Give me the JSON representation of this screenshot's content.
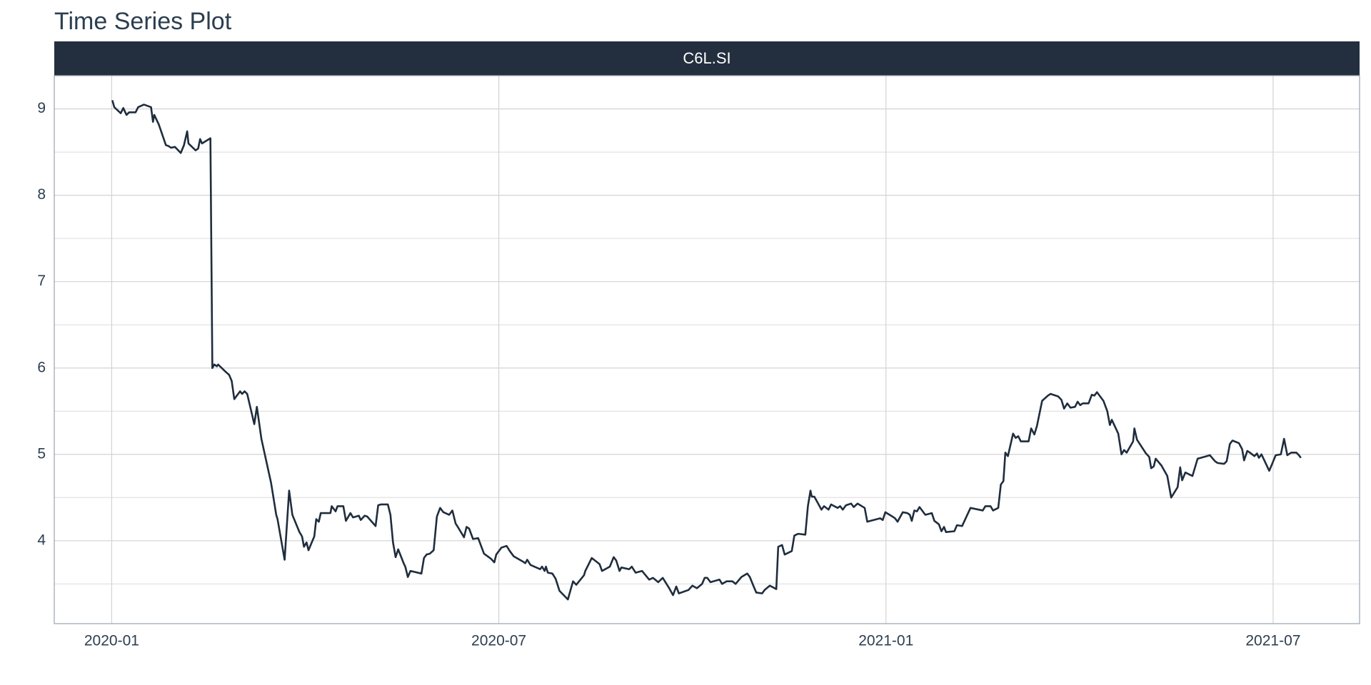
{
  "chart_data": {
    "type": "line",
    "title": "Time Series Plot",
    "panel_title": "C6L.SI",
    "color": "#1f2d3d",
    "x": [
      0.01,
      0.04,
      0.14,
      0.18,
      0.23,
      0.27,
      0.37,
      0.41,
      0.5,
      0.61,
      0.64,
      0.66,
      0.73,
      0.84,
      0.88,
      0.92,
      0.98,
      1.07,
      1.12,
      1.17,
      1.19,
      1.3,
      1.34,
      1.37,
      1.4,
      1.53,
      1.56,
      1.59,
      1.63,
      1.65,
      1.76,
      1.82,
      1.86,
      1.9,
      1.99,
      2.02,
      2.06,
      2.1,
      2.21,
      2.25,
      2.32,
      2.47,
      2.55,
      2.57,
      2.68,
      2.75,
      2.8,
      2.91,
      2.95,
      2.98,
      3.02,
      3.05,
      3.14,
      3.17,
      3.21,
      3.24,
      3.35,
      3.39,
      3.41,
      3.47,
      3.5,
      3.59,
      3.63,
      3.7,
      3.74,
      3.83,
      3.86,
      3.92,
      3.96,
      4.09,
      4.13,
      4.17,
      4.28,
      4.32,
      4.36,
      4.4,
      4.44,
      4.53,
      4.55,
      4.59,
      4.63,
      4.8,
      4.84,
      4.88,
      4.93,
      4.99,
      5.04,
      5.09,
      5.14,
      5.23,
      5.28,
      5.33,
      5.38,
      5.46,
      5.5,
      5.54,
      5.6,
      5.68,
      5.77,
      5.88,
      5.93,
      5.96,
      6.04,
      6.12,
      6.17,
      6.23,
      6.37,
      6.41,
      6.44,
      6.49,
      6.64,
      6.67,
      6.71,
      6.73,
      6.76,
      6.83,
      6.88,
      6.94,
      7.07,
      7.15,
      7.2,
      7.32,
      7.34,
      7.44,
      7.56,
      7.6,
      7.72,
      7.78,
      7.82,
      7.87,
      7.9,
      8.02,
      8.06,
      8.12,
      8.22,
      8.33,
      8.39,
      8.47,
      8.54,
      8.64,
      8.7,
      8.75,
      8.79,
      8.94,
      9.0,
      9.07,
      9.15,
      9.19,
      9.23,
      9.28,
      9.42,
      9.46,
      9.53,
      9.62,
      9.67,
      9.76,
      9.85,
      9.89,
      9.95,
      9.99,
      10.08,
      10.12,
      10.2,
      10.3,
      10.33,
      10.39,
      10.43,
      10.54,
      10.58,
      10.64,
      10.75,
      10.79,
      10.83,
      10.85,
      10.89,
      11.0,
      11.04,
      11.11,
      11.15,
      11.25,
      11.29,
      11.33,
      11.38,
      11.46,
      11.5,
      11.56,
      11.67,
      11.71,
      11.91,
      11.95,
      11.99,
      12.1,
      12.14,
      12.18,
      12.26,
      12.33,
      12.37,
      12.4,
      12.44,
      12.48,
      12.52,
      12.61,
      12.71,
      12.75,
      12.82,
      12.86,
      12.9,
      12.93,
      13.06,
      13.1,
      13.18,
      13.31,
      13.5,
      13.54,
      13.62,
      13.66,
      13.74,
      13.78,
      13.82,
      13.85,
      13.89,
      13.97,
      14.01,
      14.05,
      14.09,
      14.21,
      14.25,
      14.3,
      14.34,
      14.42,
      14.51,
      14.55,
      14.67,
      14.72,
      14.76,
      14.81,
      14.86,
      14.93,
      14.97,
      15.01,
      15.05,
      15.14,
      15.19,
      15.23,
      15.27,
      15.37,
      15.43,
      15.47,
      15.5,
      15.6,
      15.65,
      15.69,
      15.73,
      15.83,
      15.85,
      15.89,
      16.03,
      16.08,
      16.11,
      16.15,
      16.18,
      16.27,
      16.36,
      16.42,
      16.52,
      16.56,
      16.59,
      16.64,
      16.75,
      16.83,
      16.88,
      17.02,
      17.1,
      17.14,
      17.24,
      17.28,
      17.33,
      17.37,
      17.47,
      17.52,
      17.55,
      17.6,
      17.64,
      17.71,
      17.75,
      17.78,
      17.82,
      17.94,
      17.98,
      18.04,
      18.12,
      18.17,
      18.22,
      18.28,
      18.36,
      18.4,
      18.43
    ],
    "values": [
      9.1,
      9.02,
      8.95,
      9.01,
      8.93,
      8.96,
      8.96,
      9.02,
      9.05,
      9.02,
      8.85,
      8.93,
      8.82,
      8.58,
      8.57,
      8.55,
      8.56,
      8.49,
      8.58,
      8.74,
      8.6,
      8.52,
      8.54,
      8.65,
      8.6,
      8.66,
      6.0,
      6.04,
      6.02,
      6.04,
      5.96,
      5.92,
      5.85,
      5.64,
      5.73,
      5.7,
      5.73,
      5.7,
      5.35,
      5.55,
      5.18,
      4.67,
      4.3,
      4.25,
      3.78,
      4.58,
      4.3,
      4.1,
      4.05,
      3.93,
      3.98,
      3.89,
      4.05,
      4.25,
      4.22,
      4.32,
      4.32,
      4.32,
      4.4,
      4.34,
      4.4,
      4.4,
      4.23,
      4.32,
      4.27,
      4.29,
      4.24,
      4.29,
      4.28,
      4.17,
      4.41,
      4.42,
      4.42,
      4.3,
      3.98,
      3.81,
      3.9,
      3.73,
      3.7,
      3.58,
      3.65,
      3.62,
      3.8,
      3.84,
      3.85,
      3.89,
      4.28,
      4.38,
      4.33,
      4.3,
      4.35,
      4.2,
      4.14,
      4.04,
      4.16,
      4.14,
      4.02,
      4.03,
      3.85,
      3.79,
      3.75,
      3.84,
      3.92,
      3.94,
      3.88,
      3.82,
      3.76,
      3.74,
      3.78,
      3.72,
      3.67,
      3.7,
      3.65,
      3.7,
      3.63,
      3.62,
      3.56,
      3.42,
      3.32,
      3.53,
      3.49,
      3.6,
      3.65,
      3.8,
      3.73,
      3.65,
      3.7,
      3.81,
      3.77,
      3.65,
      3.69,
      3.67,
      3.7,
      3.63,
      3.65,
      3.55,
      3.57,
      3.52,
      3.57,
      3.45,
      3.37,
      3.47,
      3.39,
      3.43,
      3.48,
      3.45,
      3.5,
      3.57,
      3.57,
      3.52,
      3.55,
      3.5,
      3.53,
      3.53,
      3.5,
      3.58,
      3.62,
      3.58,
      3.47,
      3.4,
      3.39,
      3.43,
      3.48,
      3.44,
      3.93,
      3.95,
      3.84,
      3.88,
      4.06,
      4.08,
      4.07,
      4.4,
      4.58,
      4.51,
      4.51,
      4.36,
      4.4,
      4.36,
      4.42,
      4.38,
      4.4,
      4.36,
      4.41,
      4.43,
      4.39,
      4.43,
      4.38,
      4.22,
      4.26,
      4.24,
      4.33,
      4.28,
      4.26,
      4.22,
      4.33,
      4.32,
      4.3,
      4.23,
      4.35,
      4.34,
      4.39,
      4.3,
      4.32,
      4.23,
      4.19,
      4.11,
      4.16,
      4.1,
      4.11,
      4.18,
      4.17,
      4.38,
      4.35,
      4.4,
      4.4,
      4.35,
      4.38,
      4.65,
      4.69,
      5.02,
      4.98,
      5.24,
      5.19,
      5.21,
      5.15,
      5.15,
      5.3,
      5.23,
      5.33,
      5.62,
      5.68,
      5.7,
      5.67,
      5.63,
      5.53,
      5.59,
      5.54,
      5.55,
      5.61,
      5.57,
      5.59,
      5.59,
      5.69,
      5.68,
      5.72,
      5.62,
      5.5,
      5.34,
      5.4,
      5.24,
      5.0,
      5.05,
      5.02,
      5.15,
      5.3,
      5.17,
      5.01,
      4.97,
      4.84,
      4.86,
      4.95,
      4.87,
      4.75,
      4.5,
      4.62,
      4.85,
      4.7,
      4.79,
      4.75,
      4.95,
      4.96,
      4.99,
      4.92,
      4.9,
      4.89,
      4.92,
      5.12,
      5.16,
      5.13,
      5.06,
      4.93,
      5.04,
      5.02,
      4.98,
      5.01,
      4.96,
      5.0,
      4.81,
      4.88,
      4.99,
      5.0,
      5.18,
      4.99,
      5.02,
      5.02,
      4.99,
      4.96
    ],
    "xlim": [
      -0.89,
      19.34
    ],
    "xticks": [
      {
        "value": 0,
        "label": "2020-01"
      },
      {
        "value": 6,
        "label": "2020-07"
      },
      {
        "value": 12,
        "label": "2021-01"
      },
      {
        "value": 18,
        "label": "2021-07"
      }
    ],
    "ylim": [
      3.04,
      9.385
    ],
    "yticks": [
      4,
      5,
      6,
      7,
      8,
      9
    ],
    "y_minor_gridlines": [
      3.5,
      4.5,
      5.5,
      6.5,
      7.5,
      8.5
    ],
    "grid": true
  }
}
